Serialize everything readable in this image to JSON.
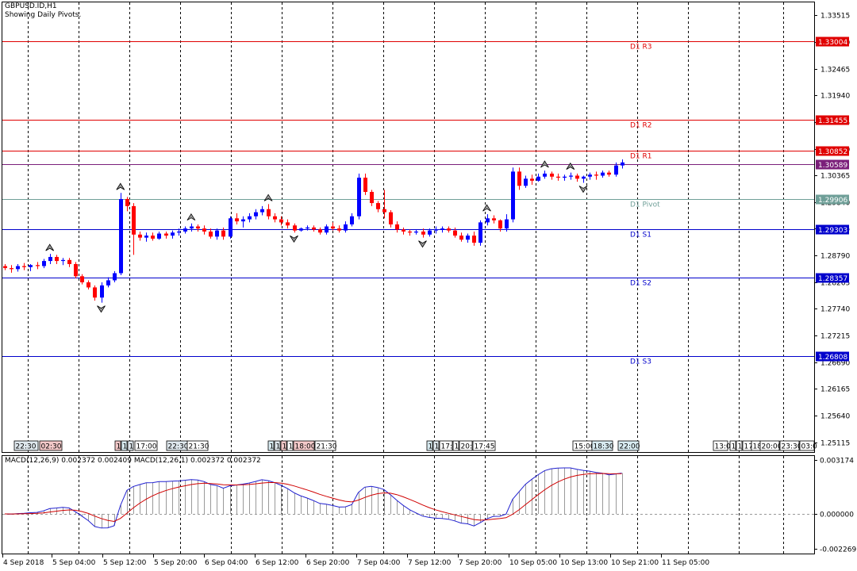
{
  "header": {
    "symbol": "GBPUSD.ID,H1",
    "subtitle": "Showing Daily Pivots."
  },
  "price_axis": {
    "ticks": [
      "1.33515",
      "1.32990",
      "1.32465",
      "1.31940",
      "1.31415",
      "1.30890",
      "1.30365",
      "1.29840",
      "1.29315",
      "1.28790",
      "1.28265",
      "1.27740",
      "1.27215",
      "1.26690",
      "1.26165",
      "1.25640",
      "1.25115"
    ]
  },
  "pivots": [
    {
      "name": "D1 R3",
      "price": 1.33004,
      "label": "1.33004",
      "color": "#e00000",
      "lineColor": "#e00000"
    },
    {
      "name": "D1 R2",
      "price": 1.31455,
      "label": "1.31455",
      "color": "#e00000",
      "lineColor": "#e00000"
    },
    {
      "name": "D1 R1",
      "price": 1.30852,
      "label": "1.30852",
      "color": "#e00000",
      "lineColor": "#e00000"
    },
    {
      "name": "",
      "price": 1.30589,
      "label": "1.30589",
      "color": "#7b1f7a",
      "lineColor": "#7b1f7a"
    },
    {
      "name": "D1 Pivot",
      "price": 1.29906,
      "label": "1.29906",
      "color": "#6f9f98",
      "lineColor": "#6f9f98"
    },
    {
      "name": "D1 S1",
      "price": 1.29303,
      "label": "1.29303",
      "color": "#0000cc",
      "lineColor": "#0000cc"
    },
    {
      "name": "D1 S2",
      "price": 1.28357,
      "label": "1.28357",
      "color": "#0000cc",
      "lineColor": "#0000cc"
    },
    {
      "name": "D1 S3",
      "price": 1.26808,
      "label": "1.26808",
      "color": "#0000cc",
      "lineColor": "#0000cc"
    }
  ],
  "session_tags": [
    {
      "text": "22:30",
      "x": 18,
      "w": 30,
      "color": "#dfe8ee"
    },
    {
      "text": "02:30",
      "x": 50,
      "w": 28,
      "color": "#f4c9c9"
    },
    {
      "text": "1",
      "x": 145,
      "w": 7,
      "color": "#f4c9c9"
    },
    {
      "text": "1",
      "x": 153,
      "w": 7,
      "color": "#d9ecf2"
    },
    {
      "text": "1",
      "x": 161,
      "w": 7,
      "color": "#dfe8ee"
    },
    {
      "text": "17:00",
      "x": 170,
      "w": 28,
      "color": "#ffffff"
    },
    {
      "text": "22:30",
      "x": 210,
      "w": 26,
      "color": "#dfe8ee"
    },
    {
      "text": "21:30",
      "x": 236,
      "w": 26,
      "color": "#ffffff"
    },
    {
      "text": "1",
      "x": 338,
      "w": 7,
      "color": "#d9ecf2"
    },
    {
      "text": "1",
      "x": 346,
      "w": 7,
      "color": "#dfe8ee"
    },
    {
      "text": "1",
      "x": 354,
      "w": 7,
      "color": "#f4c9c9"
    },
    {
      "text": "1",
      "x": 362,
      "w": 7,
      "color": "#ffffff"
    },
    {
      "text": "18:00",
      "x": 370,
      "w": 26,
      "color": "#f4c9c9"
    },
    {
      "text": "21:30",
      "x": 397,
      "w": 26,
      "color": "#ffffff"
    },
    {
      "text": "1",
      "x": 538,
      "w": 7,
      "color": "#d9ecf2"
    },
    {
      "text": "1",
      "x": 546,
      "w": 7,
      "color": "#dfe8ee"
    },
    {
      "text": "17:",
      "x": 554,
      "w": 16,
      "color": "#ffffff"
    },
    {
      "text": "1",
      "x": 571,
      "w": 7,
      "color": "#ffffff"
    },
    {
      "text": "20:",
      "x": 579,
      "w": 16,
      "color": "#ffffff"
    },
    {
      "text": "17:45",
      "x": 596,
      "w": 28,
      "color": "#ffffff"
    },
    {
      "text": "15:00",
      "x": 722,
      "w": 24,
      "color": "#ffffff"
    },
    {
      "text": "18:30",
      "x": 746,
      "w": 26,
      "color": "#d9ecf2"
    },
    {
      "text": "22:00",
      "x": 779,
      "w": 26,
      "color": "#d9ecf2"
    },
    {
      "text": "13:0",
      "x": 899,
      "w": 18,
      "color": "#ffffff"
    },
    {
      "text": "1",
      "x": 920,
      "w": 7,
      "color": "#ffffff"
    },
    {
      "text": "1",
      "x": 928,
      "w": 7,
      "color": "#ffffff"
    },
    {
      "text": "17",
      "x": 936,
      "w": 11,
      "color": "#ffffff"
    },
    {
      "text": "18",
      "x": 947,
      "w": 11,
      "color": "#ffffff"
    },
    {
      "text": "20:00",
      "x": 958,
      "w": 24,
      "color": "#ffffff"
    },
    {
      "text": "23:30",
      "x": 983,
      "w": 24,
      "color": "#ffffff"
    },
    {
      "text": "03:0",
      "x": 1008,
      "w": 18,
      "color": "#ffffff"
    }
  ],
  "time_axis": {
    "labels": [
      "4 Sep 2018",
      "5 Sep 04:00",
      "5 Sep 12:00",
      "5 Sep 20:00",
      "6 Sep 04:00",
      "6 Sep 12:00",
      "6 Sep 20:00",
      "7 Sep 04:00",
      "7 Sep 12:00",
      "7 Sep 20:00",
      "10 Sep 05:00",
      "10 Sep 13:00",
      "10 Sep 21:00",
      "11 Sep 05:00"
    ]
  },
  "macd": {
    "title": "MACD(12,26,9) 0.002372 0.002409 MACD(12,26,1) 0.002372 0.002372",
    "ticks": [
      "0.003174",
      "0.000000",
      "-0.002269"
    ]
  },
  "chart_data": {
    "type": "candlestick",
    "title": "GBPUSD.ID,H1",
    "subtitle": "Showing Daily Pivots.",
    "ylim": [
      1.2492,
      1.3377
    ],
    "up_color": "#0000ff",
    "down_color": "#ff0000",
    "candles": [
      [
        1.2858,
        1.2862,
        1.285,
        1.2854
      ],
      [
        1.2854,
        1.286,
        1.2845,
        1.2852
      ],
      [
        1.2852,
        1.2862,
        1.2847,
        1.2858
      ],
      [
        1.2858,
        1.2864,
        1.285,
        1.2856
      ],
      [
        1.2856,
        1.2862,
        1.2848,
        1.286
      ],
      [
        1.286,
        1.2866,
        1.2852,
        1.2858
      ],
      [
        1.2858,
        1.2872,
        1.2854,
        1.2868
      ],
      [
        1.2868,
        1.2882,
        1.2862,
        1.2876
      ],
      [
        1.2876,
        1.288,
        1.2862,
        1.2868
      ],
      [
        1.2868,
        1.2874,
        1.286,
        1.287
      ],
      [
        1.287,
        1.2874,
        1.2856,
        1.2862
      ],
      [
        1.2862,
        1.2866,
        1.2834,
        1.2838
      ],
      [
        1.2838,
        1.2842,
        1.2822,
        1.2826
      ],
      [
        1.2826,
        1.283,
        1.2812,
        1.2816
      ],
      [
        1.2816,
        1.282,
        1.279,
        1.2796
      ],
      [
        1.2796,
        1.2826,
        1.2786,
        1.282
      ],
      [
        1.282,
        1.2836,
        1.2816,
        1.283
      ],
      [
        1.283,
        1.2848,
        1.2826,
        1.2844
      ],
      [
        1.2844,
        1.3002,
        1.284,
        1.299
      ],
      [
        1.299,
        1.2994,
        1.2966,
        1.2976
      ],
      [
        1.2976,
        1.2982,
        1.288,
        1.292
      ],
      [
        1.292,
        1.2926,
        1.2908,
        1.2914
      ],
      [
        1.2914,
        1.2924,
        1.2906,
        1.2918
      ],
      [
        1.2918,
        1.2924,
        1.2908,
        1.2912
      ],
      [
        1.2912,
        1.2926,
        1.291,
        1.2922
      ],
      [
        1.2922,
        1.2926,
        1.2912,
        1.2918
      ],
      [
        1.2918,
        1.2928,
        1.2912,
        1.2924
      ],
      [
        1.2924,
        1.2932,
        1.2918,
        1.2926
      ],
      [
        1.2926,
        1.2936,
        1.2922,
        1.2932
      ],
      [
        1.2932,
        1.2942,
        1.2926,
        1.2936
      ],
      [
        1.2936,
        1.294,
        1.2926,
        1.2932
      ],
      [
        1.2932,
        1.2938,
        1.292,
        1.2926
      ],
      [
        1.2926,
        1.2932,
        1.2912,
        1.2916
      ],
      [
        1.2916,
        1.2932,
        1.291,
        1.2928
      ],
      [
        1.2928,
        1.2934,
        1.291,
        1.2916
      ],
      [
        1.2916,
        1.2956,
        1.2912,
        1.2952
      ],
      [
        1.2952,
        1.2962,
        1.294,
        1.2946
      ],
      [
        1.2946,
        1.2956,
        1.2934,
        1.295
      ],
      [
        1.295,
        1.2962,
        1.2944,
        1.2956
      ],
      [
        1.2956,
        1.297,
        1.295,
        1.2964
      ],
      [
        1.2964,
        1.2976,
        1.2958,
        1.297
      ],
      [
        1.297,
        1.298,
        1.295,
        1.2956
      ],
      [
        1.2956,
        1.2962,
        1.2944,
        1.295
      ],
      [
        1.295,
        1.2956,
        1.2938,
        1.2944
      ],
      [
        1.2944,
        1.295,
        1.2932,
        1.2938
      ],
      [
        1.2938,
        1.2942,
        1.2924,
        1.2928
      ],
      [
        1.2928,
        1.2934,
        1.2926,
        1.2932
      ],
      [
        1.2932,
        1.2938,
        1.2928,
        1.2934
      ],
      [
        1.2934,
        1.2938,
        1.2926,
        1.293
      ],
      [
        1.293,
        1.2934,
        1.292,
        1.2924
      ],
      [
        1.2924,
        1.294,
        1.292,
        1.2936
      ],
      [
        1.2936,
        1.2944,
        1.2928,
        1.2932
      ],
      [
        1.2932,
        1.2938,
        1.2924,
        1.2928
      ],
      [
        1.2928,
        1.2946,
        1.2924,
        1.294
      ],
      [
        1.294,
        1.2962,
        1.2936,
        1.2956
      ],
      [
        1.2956,
        1.304,
        1.295,
        1.3032
      ],
      [
        1.3032,
        1.304,
        1.2998,
        1.3004
      ],
      [
        1.3004,
        1.3008,
        1.2976,
        1.2982
      ],
      [
        1.2982,
        1.2986,
        1.2964,
        1.297
      ],
      [
        1.297,
        1.3008,
        1.2952,
        1.2964
      ],
      [
        1.2964,
        1.2968,
        1.2934,
        1.294
      ],
      [
        1.294,
        1.2946,
        1.2924,
        1.293
      ],
      [
        1.293,
        1.2934,
        1.292,
        1.2926
      ],
      [
        1.2926,
        1.293,
        1.2918,
        1.2924
      ],
      [
        1.2924,
        1.293,
        1.292,
        1.2926
      ],
      [
        1.2926,
        1.2932,
        1.2914,
        1.292
      ],
      [
        1.292,
        1.2932,
        1.2916,
        1.2928
      ],
      [
        1.2928,
        1.2936,
        1.2922,
        1.293
      ],
      [
        1.293,
        1.2936,
        1.2924,
        1.2932
      ],
      [
        1.2932,
        1.2936,
        1.2924,
        1.2928
      ],
      [
        1.2928,
        1.2934,
        1.2914,
        1.2918
      ],
      [
        1.2918,
        1.2924,
        1.2906,
        1.291
      ],
      [
        1.291,
        1.2922,
        1.2904,
        1.2918
      ],
      [
        1.2918,
        1.2926,
        1.2898,
        1.2904
      ],
      [
        1.2904,
        1.2948,
        1.2898,
        1.2944
      ],
      [
        1.2944,
        1.296,
        1.2938,
        1.2952
      ],
      [
        1.2952,
        1.2958,
        1.2942,
        1.2948
      ],
      [
        1.2948,
        1.295,
        1.2926,
        1.2932
      ],
      [
        1.2932,
        1.296,
        1.2926,
        1.295
      ],
      [
        1.295,
        1.3052,
        1.2944,
        1.3044
      ],
      [
        1.3044,
        1.3052,
        1.3008,
        1.3016
      ],
      [
        1.3016,
        1.3036,
        1.3012,
        1.303
      ],
      [
        1.303,
        1.3038,
        1.3018,
        1.3026
      ],
      [
        1.3026,
        1.304,
        1.3024,
        1.3034
      ],
      [
        1.3034,
        1.3046,
        1.303,
        1.304
      ],
      [
        1.304,
        1.3044,
        1.3028,
        1.3034
      ],
      [
        1.3034,
        1.304,
        1.3026,
        1.3032
      ],
      [
        1.3032,
        1.3038,
        1.3026,
        1.3034
      ],
      [
        1.3034,
        1.3042,
        1.3028,
        1.3036
      ],
      [
        1.3036,
        1.304,
        1.3024,
        1.303
      ],
      [
        1.303,
        1.3036,
        1.3022,
        1.3034
      ],
      [
        1.3034,
        1.3042,
        1.3028,
        1.3038
      ],
      [
        1.3038,
        1.3044,
        1.3028,
        1.3036
      ],
      [
        1.3036,
        1.3046,
        1.3032,
        1.3042
      ],
      [
        1.3042,
        1.3046,
        1.3034,
        1.3038
      ],
      [
        1.3038,
        1.3062,
        1.3034,
        1.3056
      ],
      [
        1.3056,
        1.3068,
        1.305,
        1.3062
      ]
    ]
  }
}
